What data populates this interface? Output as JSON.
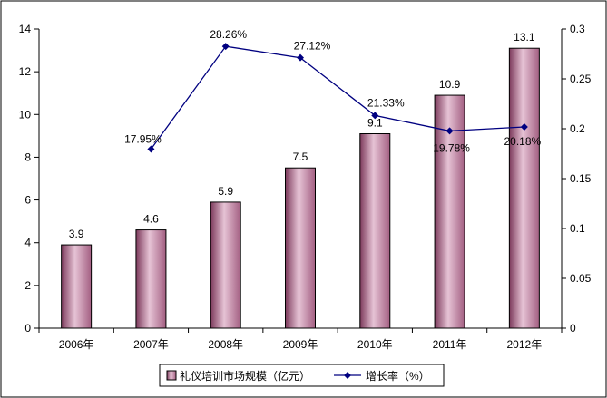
{
  "chart_data": {
    "type": "bar+line",
    "title": "",
    "categories": [
      "2006年",
      "2007年",
      "2008年",
      "2009年",
      "2010年",
      "2011年",
      "2012年"
    ],
    "bar_series": {
      "name": "礼仪培训市场规模（亿元）",
      "values": [
        3.9,
        4.6,
        5.9,
        7.5,
        9.1,
        10.9,
        13.1
      ],
      "labels": [
        "3.9",
        "4.6",
        "5.9",
        "7.5",
        "9.1",
        "10.9",
        "13.1"
      ],
      "color": "#c48aa8"
    },
    "line_series": {
      "name": "增长率（%）",
      "values": [
        null,
        0.1795,
        0.2826,
        0.2712,
        0.2133,
        0.1978,
        0.2018
      ],
      "labels": [
        "",
        "17.95%",
        "28.26%",
        "27.12%",
        "21.33%",
        "19.78%",
        "20.18%"
      ],
      "color": "#000080"
    },
    "y_left": {
      "min": 0,
      "max": 14,
      "ticks": [
        "0",
        "2",
        "4",
        "6",
        "8",
        "10",
        "12",
        "14"
      ]
    },
    "y_right": {
      "min": 0,
      "max": 0.3,
      "ticks": [
        "0",
        "0.05",
        "0.1",
        "0.15",
        "0.2",
        "0.25",
        "0.3"
      ]
    },
    "legend": {
      "position": "bottom"
    },
    "grid": false
  }
}
